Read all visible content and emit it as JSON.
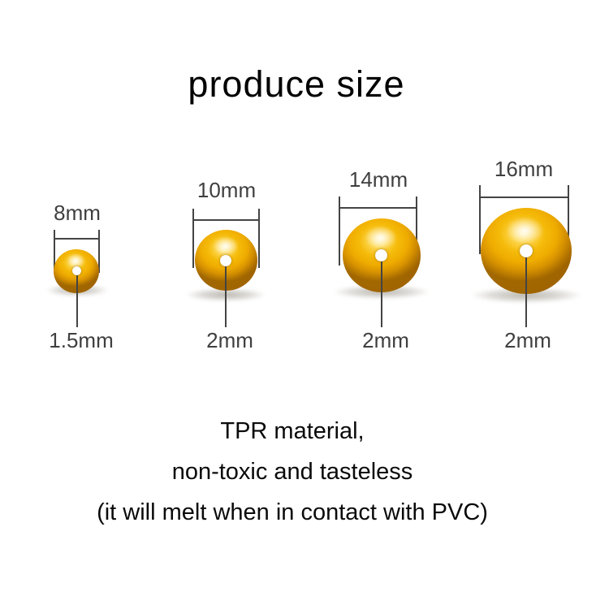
{
  "title": "produce size",
  "beads": [
    {
      "diameter_label": "8mm",
      "hole_label": "1.5mm"
    },
    {
      "diameter_label": "10mm",
      "hole_label": "2mm"
    },
    {
      "diameter_label": "14mm",
      "hole_label": "2mm"
    },
    {
      "diameter_label": "16mm",
      "hole_label": "2mm"
    }
  ],
  "description": {
    "line1": "TPR material,",
    "line2": "non-toxic and tasteless",
    "line3": "(it will melt when in contact with PVC)"
  },
  "colors": {
    "background": "#ffffff",
    "line_color": "#444444",
    "label_color": "#3f3f3f",
    "text_color": "#0a0a0a",
    "bead_highlight": "#ffee9c",
    "bead_light": "#fcd44a",
    "bead_mid": "#f5bb0a",
    "bead_main": "#efac00",
    "bead_edge": "#d79200",
    "bead_dark": "#a26800"
  }
}
